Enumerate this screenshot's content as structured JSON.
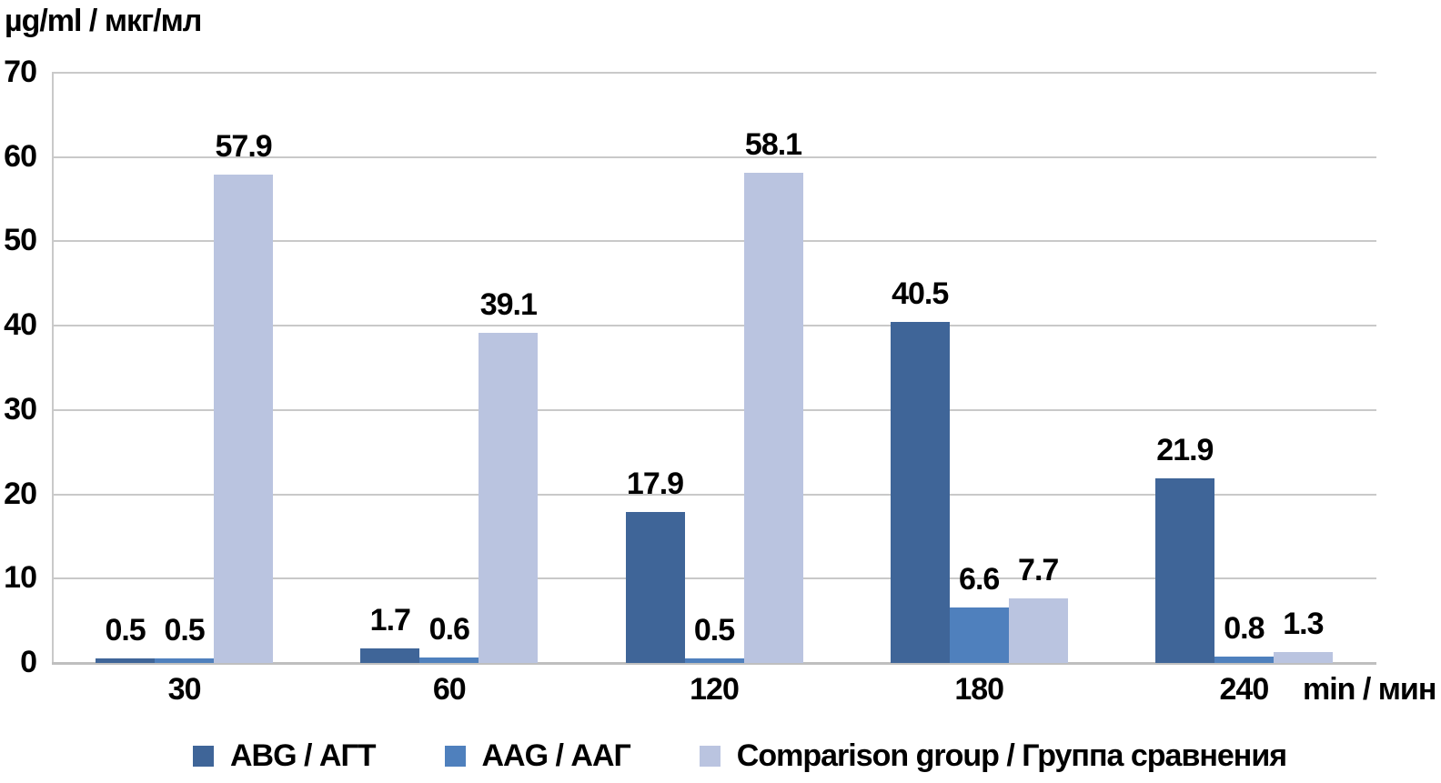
{
  "chart_data": {
    "type": "bar",
    "y_axis_title": "µg/ml / мкг/мл",
    "x_unit_label": "min / мин",
    "categories": [
      "30",
      "60",
      "120",
      "180",
      "240"
    ],
    "series": [
      {
        "name": "ABG / АГТ",
        "color": "#3F6598",
        "values": [
          0.5,
          1.7,
          17.9,
          40.5,
          21.9
        ]
      },
      {
        "name": "AAG / ААГ",
        "color": "#4F80BD",
        "values": [
          0.5,
          0.6,
          0.5,
          6.6,
          0.8
        ]
      },
      {
        "name": "Comparison group / Группа сравнения",
        "color": "#BAC4E0",
        "values": [
          57.9,
          39.1,
          58.1,
          7.7,
          1.3
        ]
      }
    ],
    "ylim": [
      0,
      70
    ],
    "yticks": [
      0,
      10,
      20,
      30,
      40,
      50,
      60,
      70
    ],
    "grid": "horizontal-only",
    "legend_position": "bottom",
    "value_labels_shown": true,
    "gridline_color": "#C9C9C9",
    "axis_line_color": "#BFBFBF",
    "text_color": "#000000"
  }
}
